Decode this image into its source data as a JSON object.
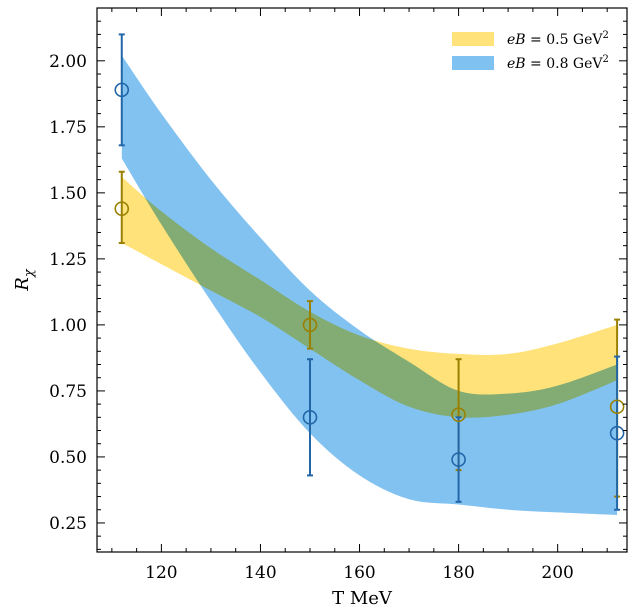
{
  "chart_data": {
    "type": "area",
    "xlabel": "T MeV",
    "ylabel": "R",
    "ylabel_subscript": "χ",
    "xlim": [
      107,
      214
    ],
    "ylim": [
      0.14,
      2.2
    ],
    "x_ticks": [
      120,
      140,
      160,
      180,
      200
    ],
    "x_tick_labels": [
      "120",
      "140",
      "160",
      "180",
      "200"
    ],
    "y_ticks": [
      0.25,
      0.5,
      0.75,
      1.0,
      1.25,
      1.5,
      1.75,
      2.0
    ],
    "y_tick_labels": [
      "0.25",
      "0.50",
      "0.75",
      "1.00",
      "1.25",
      "1.50",
      "1.75",
      "2.00"
    ],
    "legend_position": "top-right",
    "series": [
      {
        "name": "eB = 0.5 GeV²",
        "legend_math": "eB",
        "legend_rest": " = 0.5 GeV",
        "legend_sup": "2",
        "band_color": "#ffe27a",
        "marker_color": "#9a8000",
        "band_x": [
          112,
          120,
          130,
          140,
          150,
          160,
          170,
          180,
          190,
          200,
          212
        ],
        "band_upper": [
          1.56,
          1.43,
          1.29,
          1.17,
          1.05,
          0.96,
          0.91,
          0.89,
          0.89,
          0.93,
          1.0
        ],
        "band_lower": [
          1.31,
          1.23,
          1.13,
          1.03,
          0.91,
          0.79,
          0.69,
          0.65,
          0.66,
          0.7,
          0.79
        ],
        "points": [
          {
            "x": 112,
            "y": 1.44,
            "err_low": 1.31,
            "err_high": 1.58
          },
          {
            "x": 150,
            "y": 1.0,
            "err_low": 0.91,
            "err_high": 1.09
          },
          {
            "x": 180,
            "y": 0.66,
            "err_low": 0.45,
            "err_high": 0.87
          },
          {
            "x": 212,
            "y": 0.69,
            "err_low": 0.35,
            "err_high": 1.02
          }
        ]
      },
      {
        "name": "eB = 0.8 GeV²",
        "legend_math": "eB",
        "legend_rest": " = 0.8 GeV",
        "legend_sup": "2",
        "band_color": "#7fc1f1",
        "marker_color": "#2266a8",
        "band_x": [
          112,
          120,
          130,
          140,
          150,
          160,
          170,
          180,
          190,
          200,
          212
        ],
        "band_upper": [
          2.02,
          1.8,
          1.55,
          1.33,
          1.13,
          0.98,
          0.86,
          0.75,
          0.74,
          0.77,
          0.85
        ],
        "band_lower": [
          1.63,
          1.38,
          1.09,
          0.82,
          0.59,
          0.43,
          0.34,
          0.32,
          0.3,
          0.29,
          0.28
        ],
        "points": [
          {
            "x": 112,
            "y": 1.89,
            "err_low": 1.68,
            "err_high": 2.1
          },
          {
            "x": 150,
            "y": 0.65,
            "err_low": 0.43,
            "err_high": 0.87
          },
          {
            "x": 180,
            "y": 0.49,
            "err_low": 0.33,
            "err_high": 0.65
          },
          {
            "x": 212,
            "y": 0.59,
            "err_low": 0.3,
            "err_high": 0.88
          }
        ]
      }
    ]
  }
}
